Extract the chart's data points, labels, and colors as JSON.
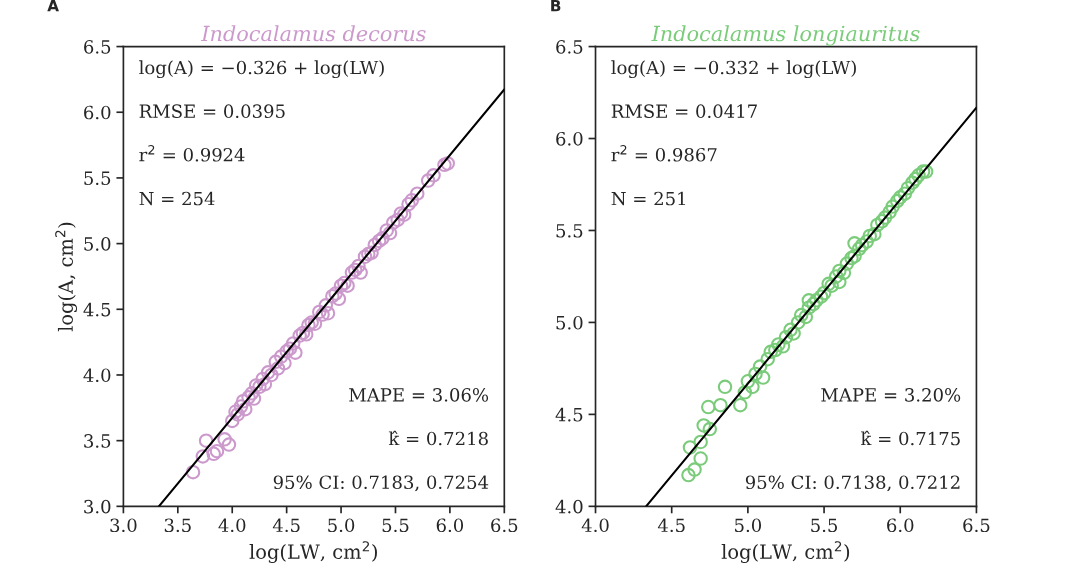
{
  "chart_data": [
    {
      "type": "scatter",
      "title": "Indocalamus decorus",
      "xlabel": "log(LW, cm$^{2}$)",
      "ylabel": "log(A, cm$^{2}$)",
      "xlim": [
        3.0,
        6.5
      ],
      "ylim": [
        3.0,
        6.5
      ],
      "xticks": [
        {
          "value": 3,
          "label": "3.0"
        },
        {
          "value": 3.5,
          "label": "3.5"
        },
        {
          "value": 4,
          "label": "4.0"
        },
        {
          "value": 4.5,
          "label": "4.5"
        },
        {
          "value": 5,
          "label": "5.0"
        },
        {
          "value": 5.5,
          "label": "5.5"
        },
        {
          "value": 6,
          "label": "6.0"
        },
        {
          "value": 6.5,
          "label": "6.5"
        }
      ],
      "yticks": [
        {
          "value": 3,
          "label": "3.0"
        },
        {
          "value": 3.5,
          "label": "3.5"
        },
        {
          "value": 4,
          "label": "4.0"
        },
        {
          "value": 4.5,
          "label": "4.5"
        },
        {
          "value": 5,
          "label": "5.0"
        },
        {
          "value": 5.5,
          "label": "5.5"
        },
        {
          "value": 6,
          "label": "6.0"
        },
        {
          "value": 6.5,
          "label": "6.5"
        }
      ],
      "annotations": [
        "A",
        "log(A) = −0.326 + log(LW)",
        "RMSE = 0.0395",
        "r$^{2}$ = 0.9924",
        "N = 254",
        "MAPE = 3.06%",
        "k̂ = 0.7218",
        "95% CI: 0.7183, 0.7254"
      ],
      "series": [
        {
          "marker": "circle",
          "color": "#cc99cc",
          "x": [
            3.64,
            3.73,
            3.76,
            3.83,
            3.86,
            3.93,
            3.97,
            4.0,
            4.03,
            4.05,
            4.08,
            4.1,
            4.12,
            4.15,
            4.18,
            4.2,
            4.22,
            4.25,
            4.28,
            4.3,
            4.33,
            4.36,
            4.4,
            4.42,
            4.45,
            4.48,
            4.5,
            4.53,
            4.56,
            4.58,
            4.62,
            4.65,
            4.68,
            4.7,
            4.73,
            4.76,
            4.8,
            4.83,
            4.86,
            4.88,
            4.92,
            4.95,
            4.98,
            5.0,
            5.03,
            5.06,
            5.1,
            5.13,
            5.16,
            5.18,
            5.22,
            5.25,
            5.28,
            5.31,
            5.35,
            5.38,
            5.42,
            5.45,
            5.48,
            5.52,
            5.55,
            5.58,
            5.62,
            5.65,
            5.7,
            5.8,
            5.85,
            5.95,
            5.98
          ],
          "values": [
            3.26,
            3.38,
            3.5,
            3.4,
            3.42,
            3.51,
            3.47,
            3.65,
            3.72,
            3.7,
            3.76,
            3.8,
            3.74,
            3.83,
            3.86,
            3.82,
            3.92,
            3.91,
            3.97,
            3.93,
            4.02,
            4.0,
            4.1,
            4.05,
            4.14,
            4.09,
            4.18,
            4.2,
            4.24,
            4.17,
            4.3,
            4.32,
            4.31,
            4.38,
            4.4,
            4.39,
            4.48,
            4.46,
            4.53,
            4.47,
            4.6,
            4.62,
            4.58,
            4.68,
            4.7,
            4.68,
            4.78,
            4.8,
            4.83,
            4.78,
            4.9,
            4.92,
            4.93,
            4.99,
            5.02,
            5.04,
            5.1,
            5.08,
            5.16,
            5.18,
            5.23,
            5.22,
            5.3,
            5.33,
            5.38,
            5.48,
            5.52,
            5.6,
            5.61
          ]
        },
        {
          "type": "line",
          "color": "#000000",
          "x": [
            3.326,
            6.5
          ],
          "values": [
            3.0,
            6.174
          ]
        }
      ]
    },
    {
      "type": "scatter",
      "title": "Indocalamus longiauritus",
      "xlabel": "log(LW, cm$^{2}$)",
      "xlim": [
        4.0,
        6.5
      ],
      "ylim": [
        4.0,
        6.5
      ],
      "xticks": [
        {
          "value": 4,
          "label": "4.0"
        },
        {
          "value": 4.5,
          "label": "4.5"
        },
        {
          "value": 5,
          "label": "5.0"
        },
        {
          "value": 5.5,
          "label": "5.5"
        },
        {
          "value": 6,
          "label": "6.0"
        },
        {
          "value": 6.5,
          "label": "6.5"
        }
      ],
      "yticks": [
        {
          "value": 4,
          "label": "4.0"
        },
        {
          "value": 4.5,
          "label": "4.5"
        },
        {
          "value": 5,
          "label": "5.0"
        },
        {
          "value": 5.5,
          "label": "5.5"
        },
        {
          "value": 6,
          "label": "6.0"
        },
        {
          "value": 6.5,
          "label": "6.5"
        }
      ],
      "annotations": [
        "B",
        "log(A) = −0.332 + log(LW)",
        "RMSE = 0.0417",
        "r$^{2}$ = 0.9867",
        "N = 251",
        "MAPE = 3.20%",
        "k̂ = 0.7175",
        "95% CI: 0.7138, 0.7212"
      ],
      "series": [
        {
          "marker": "circle",
          "color": "#7acc7a",
          "x": [
            4.61,
            4.62,
            4.65,
            4.69,
            4.69,
            4.71,
            4.74,
            4.75,
            4.82,
            4.85,
            4.95,
            4.98,
            5.0,
            5.03,
            5.05,
            5.08,
            5.1,
            5.13,
            5.15,
            5.18,
            5.2,
            5.23,
            5.25,
            5.28,
            5.3,
            5.33,
            5.35,
            5.38,
            5.4,
            5.4,
            5.43,
            5.45,
            5.48,
            5.5,
            5.53,
            5.55,
            5.58,
            5.6,
            5.6,
            5.63,
            5.65,
            5.68,
            5.7,
            5.7,
            5.73,
            5.75,
            5.78,
            5.8,
            5.83,
            5.85,
            5.88,
            5.9,
            5.93,
            5.95,
            5.98,
            6.0,
            6.03,
            6.05,
            6.08,
            6.1,
            6.12,
            6.15,
            6.17
          ],
          "values": [
            4.17,
            4.32,
            4.2,
            4.35,
            4.26,
            4.44,
            4.54,
            4.42,
            4.55,
            4.65,
            4.55,
            4.62,
            4.68,
            4.65,
            4.72,
            4.76,
            4.7,
            4.8,
            4.84,
            4.85,
            4.88,
            4.87,
            4.92,
            4.96,
            4.94,
            5.0,
            5.04,
            5.03,
            5.08,
            5.12,
            5.1,
            5.12,
            5.14,
            5.16,
            5.21,
            5.2,
            5.25,
            5.28,
            5.22,
            5.27,
            5.32,
            5.35,
            5.36,
            5.43,
            5.4,
            5.42,
            5.44,
            5.47,
            5.48,
            5.53,
            5.55,
            5.57,
            5.6,
            5.63,
            5.66,
            5.68,
            5.7,
            5.73,
            5.76,
            5.78,
            5.8,
            5.82,
            5.82
          ]
        },
        {
          "type": "line",
          "color": "#000000",
          "x": [
            4.332,
            6.5
          ],
          "values": [
            4.0,
            6.168
          ]
        }
      ]
    }
  ]
}
